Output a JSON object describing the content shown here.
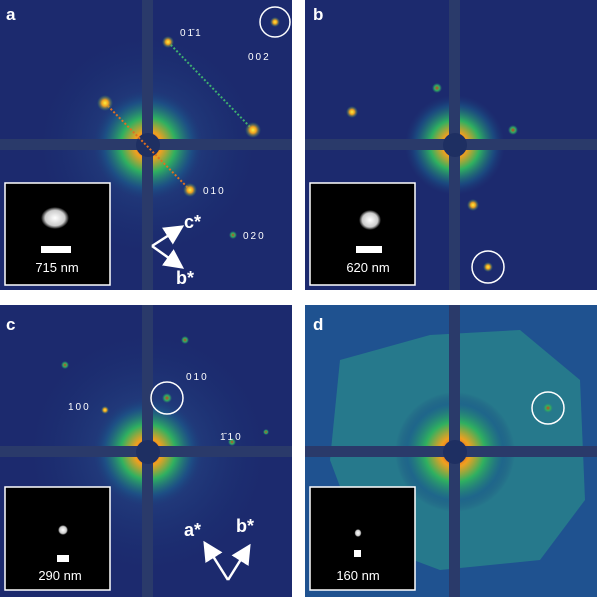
{
  "panels": [
    {
      "label": "a",
      "reflections": [
        "01̄1",
        "002",
        "010",
        "020"
      ],
      "scale": "715 nm",
      "axes": [
        "c*",
        "b*"
      ]
    },
    {
      "label": "b",
      "scale": "620 nm"
    },
    {
      "label": "c",
      "reflections": [
        "100",
        "010",
        "1̄10"
      ],
      "scale": "290 nm",
      "axes": [
        "a*",
        "b*"
      ]
    },
    {
      "label": "d",
      "scale": "160 nm"
    }
  ]
}
